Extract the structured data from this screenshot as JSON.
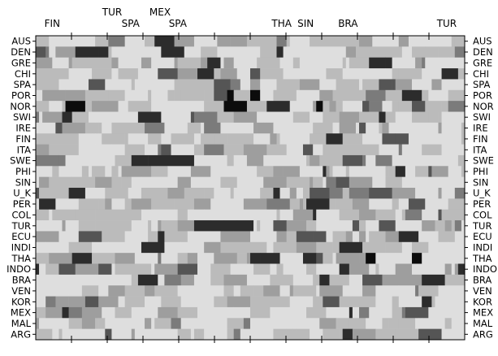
{
  "chart_data": {
    "type": "heatmap",
    "title": "",
    "xlabel": "",
    "ylabel": "",
    "rows": [
      "AUS",
      "DEN",
      "GRE",
      "CHI",
      "SPA",
      "POR",
      "NOR",
      "SWI",
      "IRE",
      "FIN",
      "ITA",
      "SWE",
      "PHI",
      "SIN",
      "U_K",
      "PER",
      "COL",
      "TUR",
      "ECU",
      "INDI",
      "THA",
      "INDO",
      "BRA",
      "VEN",
      "KOR",
      "MEX",
      "MAL",
      "ARG"
    ],
    "top_labels": [
      {
        "text": "FIN",
        "tier": "lower",
        "pos": 0.02
      },
      {
        "text": "TUR",
        "tier": "upper",
        "pos": 0.155
      },
      {
        "text": "SPA",
        "tier": "lower",
        "pos": 0.2
      },
      {
        "text": "MEX",
        "tier": "upper",
        "pos": 0.265
      },
      {
        "text": "SPA",
        "tier": "lower",
        "pos": 0.31
      },
      {
        "text": "THA",
        "tier": "lower",
        "pos": 0.55
      },
      {
        "text": "SIN",
        "tier": "lower",
        "pos": 0.61
      },
      {
        "text": "BRA",
        "tier": "lower",
        "pos": 0.705
      },
      {
        "text": "TUR",
        "tier": "lower",
        "pos": 0.935
      }
    ],
    "n_columns": 130,
    "n_ticks": 12,
    "value_range": [
      0,
      1
    ],
    "grayscale": {
      "low": "#e2e2e2",
      "high": "#0c0c0c"
    },
    "grid": false,
    "legend": "none",
    "row_intensity": [
      0.22,
      0.36,
      0.22,
      0.2,
      0.3,
      0.52,
      0.55,
      0.26,
      0.22,
      0.22,
      0.3,
      0.36,
      0.2,
      0.36,
      0.18,
      0.2,
      0.2,
      0.24,
      0.18,
      0.2,
      0.46,
      0.26,
      0.2,
      0.2,
      0.2,
      0.26,
      0.2,
      0.22
    ]
  }
}
